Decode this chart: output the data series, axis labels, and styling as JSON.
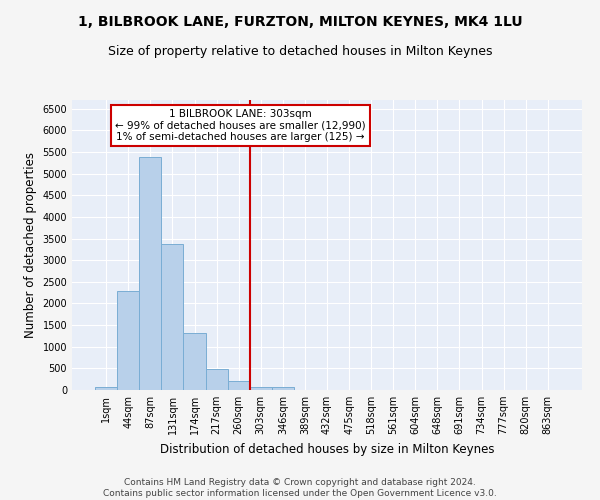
{
  "title": "1, BILBROOK LANE, FURZTON, MILTON KEYNES, MK4 1LU",
  "subtitle": "Size of property relative to detached houses in Milton Keynes",
  "xlabel": "Distribution of detached houses by size in Milton Keynes",
  "ylabel": "Number of detached properties",
  "categories": [
    "1sqm",
    "44sqm",
    "87sqm",
    "131sqm",
    "174sqm",
    "217sqm",
    "260sqm",
    "303sqm",
    "346sqm",
    "389sqm",
    "432sqm",
    "475sqm",
    "518sqm",
    "561sqm",
    "604sqm",
    "648sqm",
    "691sqm",
    "734sqm",
    "777sqm",
    "820sqm",
    "863sqm"
  ],
  "values": [
    70,
    2280,
    5380,
    3380,
    1320,
    480,
    200,
    80,
    80,
    0,
    0,
    0,
    0,
    0,
    0,
    0,
    0,
    0,
    0,
    0,
    0
  ],
  "bar_color": "#b8d0ea",
  "bar_edge_color": "#7aadd4",
  "vline_color": "#cc0000",
  "annotation_text": "1 BILBROOK LANE: 303sqm\n← 99% of detached houses are smaller (12,990)\n1% of semi-detached houses are larger (125) →",
  "annotation_box_color": "#ffffff",
  "annotation_box_edge": "#cc0000",
  "ylim": [
    0,
    6700
  ],
  "yticks": [
    0,
    500,
    1000,
    1500,
    2000,
    2500,
    3000,
    3500,
    4000,
    4500,
    5000,
    5500,
    6000,
    6500
  ],
  "footer1": "Contains HM Land Registry data © Crown copyright and database right 2024.",
  "footer2": "Contains public sector information licensed under the Open Government Licence v3.0.",
  "bg_color": "#e8eef8",
  "grid_color": "#ffffff",
  "title_fontsize": 10,
  "subtitle_fontsize": 9,
  "axis_label_fontsize": 8.5,
  "tick_fontsize": 7,
  "footer_fontsize": 6.5,
  "annotation_fontsize": 7.5
}
